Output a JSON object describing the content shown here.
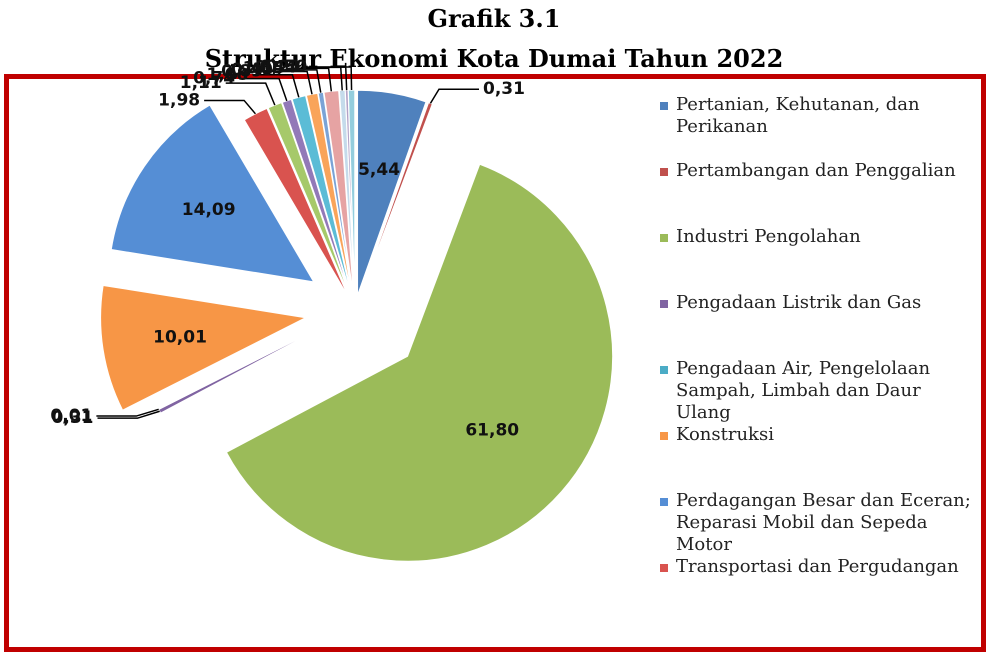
{
  "chart_data": {
    "type": "pie",
    "title": "Grafik 3.1",
    "subtitle": "Struktur Ekonomi Kota Dumai Tahun 2022",
    "categories": [
      "Pertanian, Kehutanan, dan Perikanan",
      "Pertambangan dan Penggalian",
      "Industri Pengolahan",
      "Pengadaan Listrik dan Gas",
      "Pengadaan Air, Pengelolaan Sampah, Limbah dan Daur Ulang",
      "Konstruksi",
      "Perdagangan Besar dan Eceran; Reparasi Mobil dan Sepeda Motor",
      "Transportasi dan Pergudangan",
      null,
      null,
      null,
      null,
      null,
      null,
      null,
      null,
      null
    ],
    "values": [
      5.44,
      0.31,
      61.8,
      0.31,
      0.01,
      10.01,
      14.09,
      1.98,
      1.11,
      0.74,
      1.08,
      0.89,
      0.4,
      1.15,
      0.44,
      0.21,
      0.5
    ],
    "value_labels": [
      "5,44",
      "0,31",
      "61,80",
      "0,31",
      "0,01",
      "10,01",
      "14,09",
      "1,98",
      "1,11",
      "0,74",
      "1,08",
      "0,89",
      "0,40",
      "1,15",
      "0,44",
      "0,21",
      "0,50"
    ],
    "colors": [
      "#4f81bd",
      "#c0504d",
      "#9bbb59",
      "#8064a2",
      "#4bacc6",
      "#f79646",
      "#558ed5",
      "#d9534f",
      "#a6c96a",
      "#9279b8",
      "#5bbcd6",
      "#f9a45a",
      "#7aa3d6",
      "#e6a3a3",
      "#c5dbeb",
      "#b3a2c7",
      "#93cddd"
    ]
  }
}
